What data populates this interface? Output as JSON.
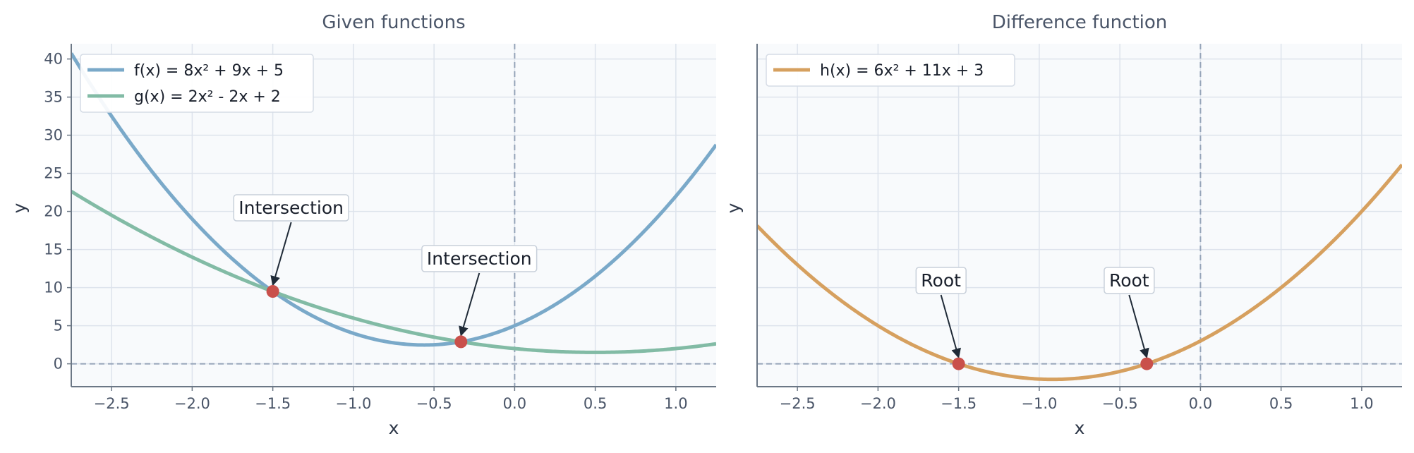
{
  "chart_data": [
    {
      "type": "line",
      "title": "Given functions",
      "xlabel": "x",
      "ylabel": "y",
      "xlim": [
        -2.75,
        1.25
      ],
      "ylim": [
        -3,
        42
      ],
      "xticks": [
        -2.5,
        -2.0,
        -1.5,
        -1.0,
        -0.5,
        0.0,
        0.5,
        1.0
      ],
      "xtick_labels": [
        "−2.5",
        "−2.0",
        "−1.5",
        "−1.0",
        "−0.5",
        "0.0",
        "0.5",
        "1.0"
      ],
      "yticks": [
        0,
        5,
        10,
        15,
        20,
        25,
        30,
        35,
        40
      ],
      "ytick_labels": [
        "0",
        "5",
        "10",
        "15",
        "20",
        "25",
        "30",
        "35",
        "40"
      ],
      "grid": true,
      "legend_position": "top-left",
      "series": [
        {
          "name": "f(x) = 8x² + 9x + 5",
          "coefficients": [
            8,
            9,
            5
          ],
          "color": "#7aa9c9"
        },
        {
          "name": "g(x) = 2x² - 2x + 2",
          "coefficients": [
            2,
            -2,
            2
          ],
          "color": "#82bba5"
        }
      ],
      "points": [
        {
          "x": -1.5,
          "y": 9.5,
          "label": "Intersection"
        },
        {
          "x": -0.333,
          "y": 2.889,
          "label": "Intersection"
        }
      ],
      "reference_lines": {
        "x": 0,
        "y": 0
      }
    },
    {
      "type": "line",
      "title": "Difference function",
      "xlabel": "x",
      "ylabel": "y",
      "xlim": [
        -2.75,
        1.25
      ],
      "ylim": [
        -3,
        42
      ],
      "xticks": [
        -2.5,
        -2.0,
        -1.5,
        -1.0,
        -0.5,
        0.0,
        0.5,
        1.0
      ],
      "xtick_labels": [
        "−2.5",
        "−2.0",
        "−1.5",
        "−1.0",
        "−0.5",
        "0.0",
        "0.5",
        "1.0"
      ],
      "grid": true,
      "legend_position": "top-left",
      "series": [
        {
          "name": "h(x) = 6x² + 11x + 3",
          "coefficients": [
            6,
            11,
            3
          ],
          "color": "#d6a05f"
        }
      ],
      "points": [
        {
          "x": -1.5,
          "y": 0,
          "label": "Root"
        },
        {
          "x": -0.333,
          "y": 0,
          "label": "Root"
        }
      ],
      "reference_lines": {
        "x": 0,
        "y": 0
      }
    }
  ],
  "colors": {
    "plot_background": "#f8fafc",
    "grid": "#dde3ec",
    "reference_line": "#94a3b8",
    "marker": "#c9504b",
    "spine": "#6b7785"
  }
}
